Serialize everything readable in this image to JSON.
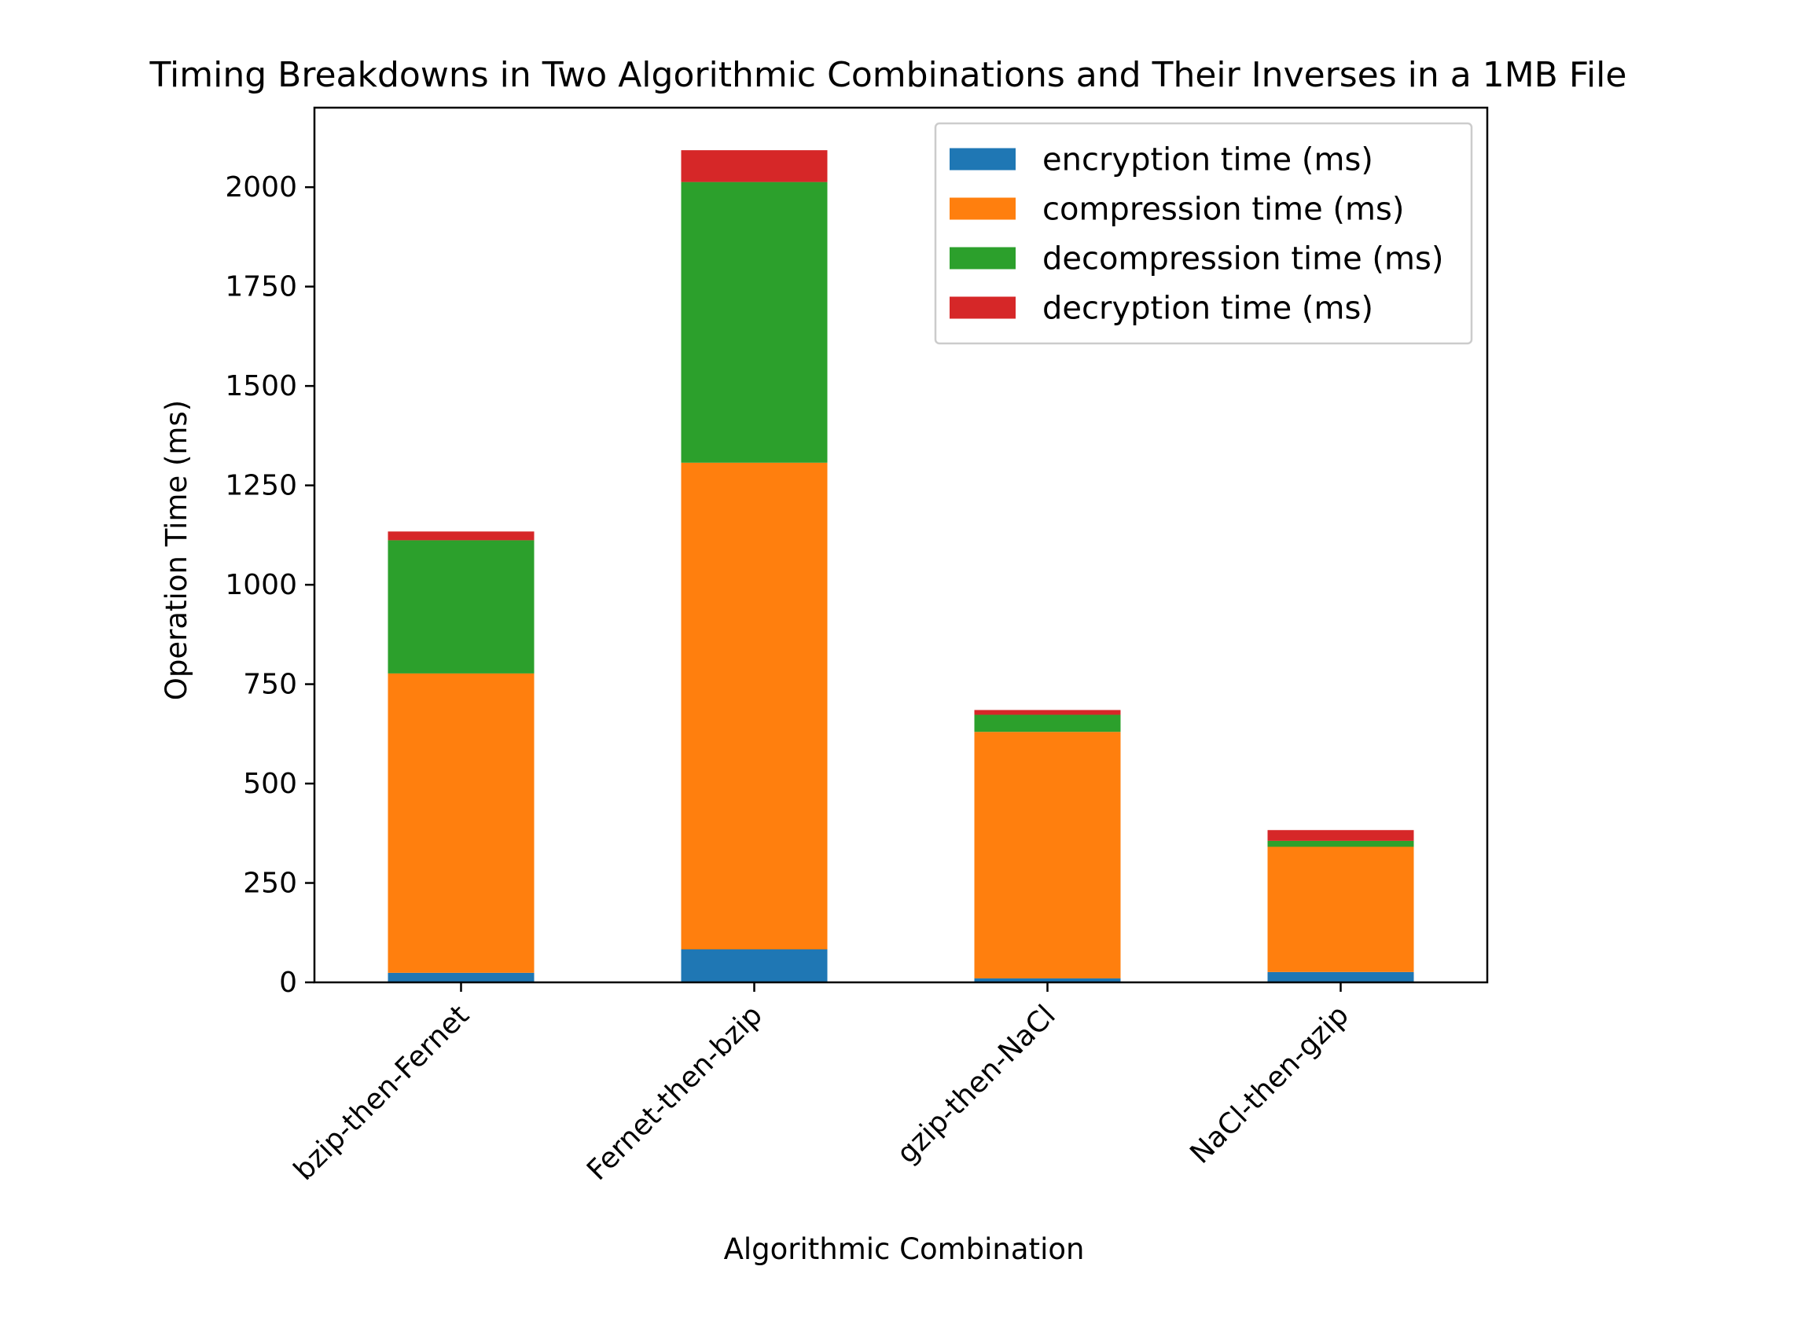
{
  "chart_data": {
    "type": "bar",
    "stacked": true,
    "title": "Timing Breakdowns in Two Algorithmic Combinations and Their Inverses in a 1MB File",
    "xlabel": "Algorithmic Combination",
    "ylabel": "Operation Time (ms)",
    "categories": [
      "bzip-then-Fernet",
      "Fernet-then-bzip",
      "gzip-then-NaCl",
      "NaCl-then-gzip"
    ],
    "series": [
      {
        "name": "encryption time (ms)",
        "color": "#1f77b4",
        "values": [
          24,
          83,
          10,
          26
        ]
      },
      {
        "name": "compression time (ms)",
        "color": "#ff7f0e",
        "values": [
          753,
          1224,
          620,
          315
        ]
      },
      {
        "name": "decompression time (ms)",
        "color": "#2ca02c",
        "values": [
          335,
          706,
          43,
          15
        ]
      },
      {
        "name": "decryption time (ms)",
        "color": "#d62728",
        "values": [
          22,
          80,
          12,
          27
        ]
      }
    ],
    "ylim": [
      0,
      2200
    ],
    "yticks": [
      0,
      250,
      500,
      750,
      1000,
      1250,
      1500,
      1750,
      2000
    ],
    "ytick_labels": [
      "0",
      "250",
      "500",
      "750",
      "1000",
      "1250",
      "1500",
      "1750",
      "2000"
    ],
    "xtick_rotation": 45,
    "grid": false,
    "legend_position": "top-right"
  }
}
